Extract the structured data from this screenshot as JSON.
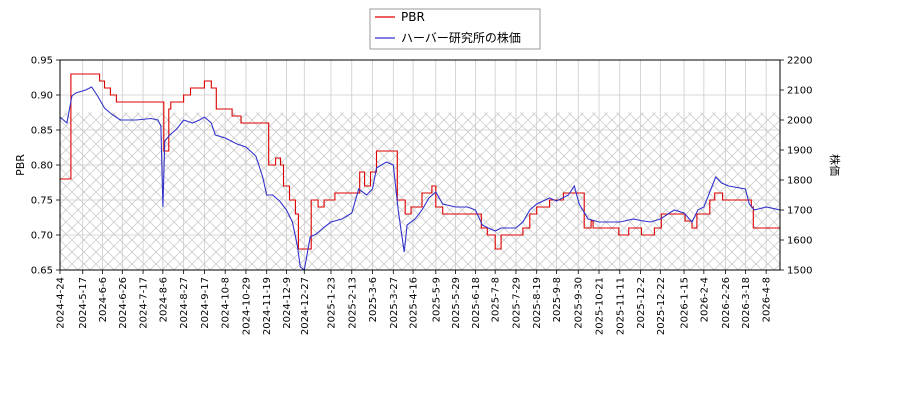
{
  "chart_data": {
    "type": "line",
    "title": "",
    "xlabel": "",
    "x_ticks": [
      "2024-4-24",
      "2024-5-17",
      "2024-6-6",
      "2024-6-26",
      "2024-7-17",
      "2024-8-6",
      "2024-8-27",
      "2024-9-17",
      "2024-10-8",
      "2024-10-29",
      "2024-11-19",
      "2024-12-9",
      "2024-12-27",
      "2025-1-23",
      "2025-2-13",
      "2025-3-6",
      "2025-3-27",
      "2025-4-16",
      "2025-5-9",
      "2025-5-29",
      "2025-6-18",
      "2025-7-8",
      "2025-7-29",
      "2025-8-19",
      "2025-9-8",
      "2025-9-30",
      "2025-10-21",
      "2025-11-11",
      "2025-12-2",
      "2025-12-22",
      "2026-1-15",
      "2026-2-4",
      "2026-2-26",
      "2026-3-18",
      "2026-4-8"
    ],
    "x_range": [
      "2024-4-24",
      "2026-4-22"
    ],
    "y_left": {
      "label": "PBR",
      "ylim": [
        0.65,
        0.95
      ],
      "ticks": [
        "0.65",
        "0.70",
        "0.75",
        "0.80",
        "0.85",
        "0.90",
        "0.95"
      ]
    },
    "y_right": {
      "label": "株価",
      "ylim": [
        1500,
        2200
      ],
      "ticks": [
        "1500",
        "1600",
        "1700",
        "1800",
        "1900",
        "2000",
        "2100",
        "2200"
      ]
    },
    "grid": true,
    "legend_position": "top-center",
    "series": [
      {
        "name": "PBR",
        "axis": "left",
        "color": "#dd0000",
        "step": true,
        "points": [
          [
            "2024-4-24",
            0.78
          ],
          [
            "2024-5-3",
            0.78
          ],
          [
            "2024-5-5",
            0.93
          ],
          [
            "2024-5-27",
            0.93
          ],
          [
            "2024-6-3",
            0.92
          ],
          [
            "2024-6-8",
            0.91
          ],
          [
            "2024-6-14",
            0.9
          ],
          [
            "2024-6-20",
            0.89
          ],
          [
            "2024-8-6",
            0.89
          ],
          [
            "2024-8-7",
            0.82
          ],
          [
            "2024-8-12",
            0.88
          ],
          [
            "2024-8-14",
            0.89
          ],
          [
            "2024-8-27",
            0.9
          ],
          [
            "2024-9-3",
            0.91
          ],
          [
            "2024-9-17",
            0.92
          ],
          [
            "2024-9-24",
            0.91
          ],
          [
            "2024-9-29",
            0.88
          ],
          [
            "2024-10-15",
            0.87
          ],
          [
            "2024-10-24",
            0.86
          ],
          [
            "2024-11-19",
            0.86
          ],
          [
            "2024-11-21",
            0.8
          ],
          [
            "2024-11-28",
            0.81
          ],
          [
            "2024-12-3",
            0.8
          ],
          [
            "2024-12-6",
            0.77
          ],
          [
            "2024-12-12",
            0.75
          ],
          [
            "2024-12-18",
            0.73
          ],
          [
            "2024-12-21",
            0.68
          ],
          [
            "2024-12-31",
            0.68
          ],
          [
            "2025-1-3",
            0.75
          ],
          [
            "2025-1-10",
            0.74
          ],
          [
            "2025-1-16",
            0.75
          ],
          [
            "2025-1-27",
            0.76
          ],
          [
            "2025-2-18",
            0.76
          ],
          [
            "2025-2-21",
            0.79
          ],
          [
            "2025-2-26",
            0.77
          ],
          [
            "2025-3-4",
            0.79
          ],
          [
            "2025-3-10",
            0.82
          ],
          [
            "2025-3-28",
            0.82
          ],
          [
            "2025-3-31",
            0.75
          ],
          [
            "2025-4-8",
            0.73
          ],
          [
            "2025-4-14",
            0.74
          ],
          [
            "2025-4-25",
            0.76
          ],
          [
            "2025-5-5",
            0.77
          ],
          [
            "2025-5-9",
            0.74
          ],
          [
            "2025-5-16",
            0.73
          ],
          [
            "2025-6-20",
            0.73
          ],
          [
            "2025-6-24",
            0.71
          ],
          [
            "2025-6-30",
            0.7
          ],
          [
            "2025-7-8",
            0.68
          ],
          [
            "2025-7-14",
            0.7
          ],
          [
            "2025-7-29",
            0.7
          ],
          [
            "2025-8-5",
            0.71
          ],
          [
            "2025-8-12",
            0.73
          ],
          [
            "2025-8-19",
            0.74
          ],
          [
            "2025-9-1",
            0.75
          ],
          [
            "2025-9-15",
            0.76
          ],
          [
            "2025-10-1",
            0.76
          ],
          [
            "2025-10-6",
            0.71
          ],
          [
            "2025-10-13",
            0.72
          ],
          [
            "2025-10-15",
            0.71
          ],
          [
            "2025-11-6",
            0.71
          ],
          [
            "2025-11-10",
            0.7
          ],
          [
            "2025-11-20",
            0.71
          ],
          [
            "2025-12-3",
            0.7
          ],
          [
            "2025-12-16",
            0.71
          ],
          [
            "2025-12-23",
            0.73
          ],
          [
            "2026-1-12",
            0.73
          ],
          [
            "2026-1-16",
            0.72
          ],
          [
            "2026-1-23",
            0.71
          ],
          [
            "2026-1-28",
            0.73
          ],
          [
            "2026-2-10",
            0.75
          ],
          [
            "2026-2-15",
            0.76
          ],
          [
            "2026-2-23",
            0.75
          ],
          [
            "2026-3-20",
            0.75
          ],
          [
            "2026-3-24",
            0.74
          ],
          [
            "2026-3-26",
            0.71
          ],
          [
            "2026-4-22",
            0.71
          ]
        ]
      },
      {
        "name": "ハーバー研究所の株価",
        "axis": "right",
        "color": "#3333cc",
        "step": false,
        "points": [
          [
            "2024-4-24",
            2010
          ],
          [
            "2024-5-1",
            1990
          ],
          [
            "2024-5-6",
            2080
          ],
          [
            "2024-5-10",
            2090
          ],
          [
            "2024-5-20",
            2100
          ],
          [
            "2024-5-26",
            2110
          ],
          [
            "2024-6-1",
            2080
          ],
          [
            "2024-6-8",
            2040
          ],
          [
            "2024-6-15",
            2020
          ],
          [
            "2024-6-24",
            2000
          ],
          [
            "2024-7-10",
            2000
          ],
          [
            "2024-7-25",
            2005
          ],
          [
            "2024-8-1",
            2000
          ],
          [
            "2024-8-4",
            1980
          ],
          [
            "2024-8-6",
            1710
          ],
          [
            "2024-8-8",
            1930
          ],
          [
            "2024-8-13",
            1950
          ],
          [
            "2024-8-20",
            1970
          ],
          [
            "2024-8-27",
            2000
          ],
          [
            "2024-9-5",
            1990
          ],
          [
            "2024-9-12",
            2000
          ],
          [
            "2024-9-17",
            2010
          ],
          [
            "2024-9-24",
            1990
          ],
          [
            "2024-9-28",
            1950
          ],
          [
            "2024-10-8",
            1940
          ],
          [
            "2024-10-20",
            1920
          ],
          [
            "2024-10-29",
            1910
          ],
          [
            "2024-11-8",
            1880
          ],
          [
            "2024-11-15",
            1810
          ],
          [
            "2024-11-19",
            1750
          ],
          [
            "2024-11-25",
            1750
          ],
          [
            "2024-12-2",
            1730
          ],
          [
            "2024-12-9",
            1700
          ],
          [
            "2024-12-15",
            1660
          ],
          [
            "2024-12-20",
            1580
          ],
          [
            "2024-12-23",
            1510
          ],
          [
            "2024-12-27",
            1500
          ],
          [
            "2025-1-2",
            1610
          ],
          [
            "2025-1-8",
            1620
          ],
          [
            "2025-1-15",
            1640
          ],
          [
            "2025-1-23",
            1660
          ],
          [
            "2025-2-3",
            1670
          ],
          [
            "2025-2-13",
            1690
          ],
          [
            "2025-2-20",
            1770
          ],
          [
            "2025-2-28",
            1750
          ],
          [
            "2025-3-6",
            1770
          ],
          [
            "2025-3-10",
            1840
          ],
          [
            "2025-3-20",
            1860
          ],
          [
            "2025-3-27",
            1850
          ],
          [
            "2025-4-1",
            1700
          ],
          [
            "2025-4-7",
            1560
          ],
          [
            "2025-4-10",
            1650
          ],
          [
            "2025-4-18",
            1670
          ],
          [
            "2025-4-25",
            1700
          ],
          [
            "2025-5-2",
            1740
          ],
          [
            "2025-5-9",
            1760
          ],
          [
            "2025-5-16",
            1720
          ],
          [
            "2025-5-29",
            1710
          ],
          [
            "2025-6-10",
            1710
          ],
          [
            "2025-6-18",
            1700
          ],
          [
            "2025-6-25",
            1650
          ],
          [
            "2025-7-1",
            1640
          ],
          [
            "2025-7-8",
            1630
          ],
          [
            "2025-7-14",
            1640
          ],
          [
            "2025-7-29",
            1640
          ],
          [
            "2025-8-5",
            1660
          ],
          [
            "2025-8-12",
            1700
          ],
          [
            "2025-8-19",
            1720
          ],
          [
            "2025-9-1",
            1740
          ],
          [
            "2025-9-8",
            1730
          ],
          [
            "2025-9-20",
            1750
          ],
          [
            "2025-9-26",
            1780
          ],
          [
            "2025-10-1",
            1720
          ],
          [
            "2025-10-10",
            1670
          ],
          [
            "2025-10-21",
            1660
          ],
          [
            "2025-11-1",
            1660
          ],
          [
            "2025-11-11",
            1660
          ],
          [
            "2025-11-25",
            1670
          ],
          [
            "2025-12-2",
            1665
          ],
          [
            "2025-12-12",
            1660
          ],
          [
            "2025-12-22",
            1670
          ],
          [
            "2026-1-5",
            1700
          ],
          [
            "2026-1-15",
            1690
          ],
          [
            "2026-1-23",
            1660
          ],
          [
            "2026-1-29",
            1700
          ],
          [
            "2026-2-4",
            1710
          ],
          [
            "2026-2-10",
            1760
          ],
          [
            "2026-2-16",
            1810
          ],
          [
            "2026-2-22",
            1790
          ],
          [
            "2026-3-1",
            1780
          ],
          [
            "2026-3-18",
            1770
          ],
          [
            "2026-3-22",
            1720
          ],
          [
            "2026-3-27",
            1700
          ],
          [
            "2026-4-8",
            1710
          ],
          [
            "2026-4-22",
            1700
          ]
        ]
      }
    ]
  }
}
